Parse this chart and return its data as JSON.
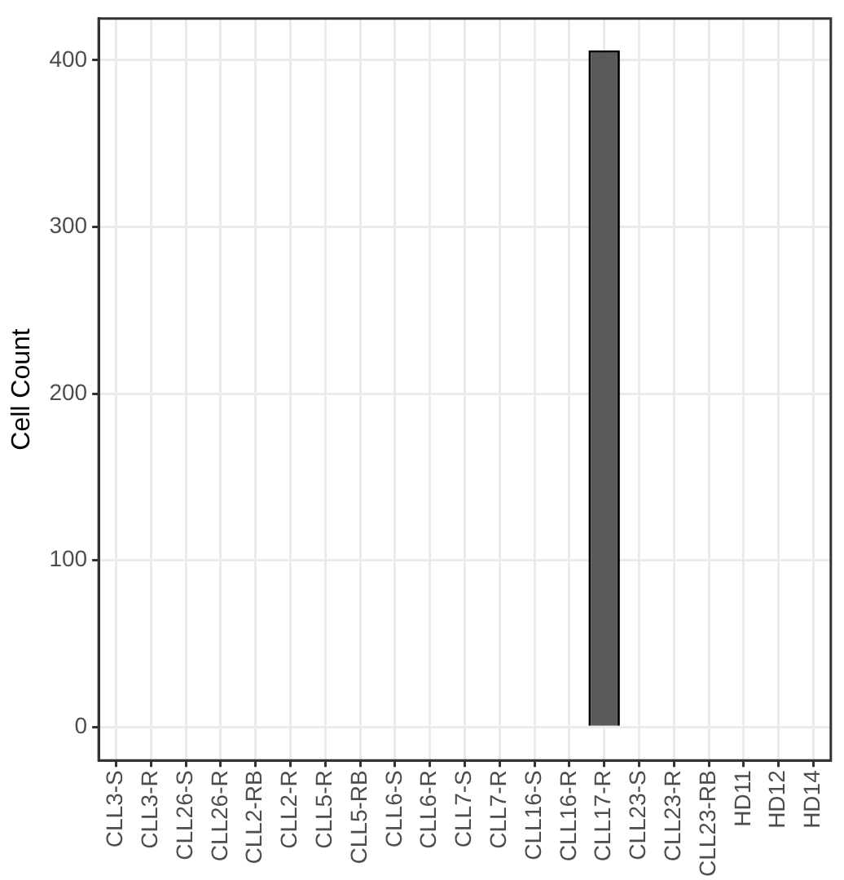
{
  "chart_data": {
    "type": "bar",
    "ylabel": "Cell Count",
    "categories": [
      "CLL3-S",
      "CLL3-R",
      "CLL26-S",
      "CLL26-R",
      "CLL2-RB",
      "CLL2-R",
      "CLL5-R",
      "CLL5-RB",
      "CLL6-S",
      "CLL6-R",
      "CLL7-S",
      "CLL7-R",
      "CLL16-S",
      "CLL16-R",
      "CLL17-R",
      "CLL23-S",
      "CLL23-R",
      "CLL23-RB",
      "HD11",
      "HD12",
      "HD14"
    ],
    "values": [
      0,
      0,
      0,
      0,
      0,
      0,
      0,
      0,
      0,
      0,
      0,
      0,
      0,
      0,
      406,
      0,
      0,
      0,
      0,
      0,
      0
    ],
    "color": "#595959",
    "ylim": [
      -20,
      425
    ],
    "yticks": [
      0,
      100,
      200,
      300,
      400
    ],
    "grid": true,
    "legend": false
  }
}
